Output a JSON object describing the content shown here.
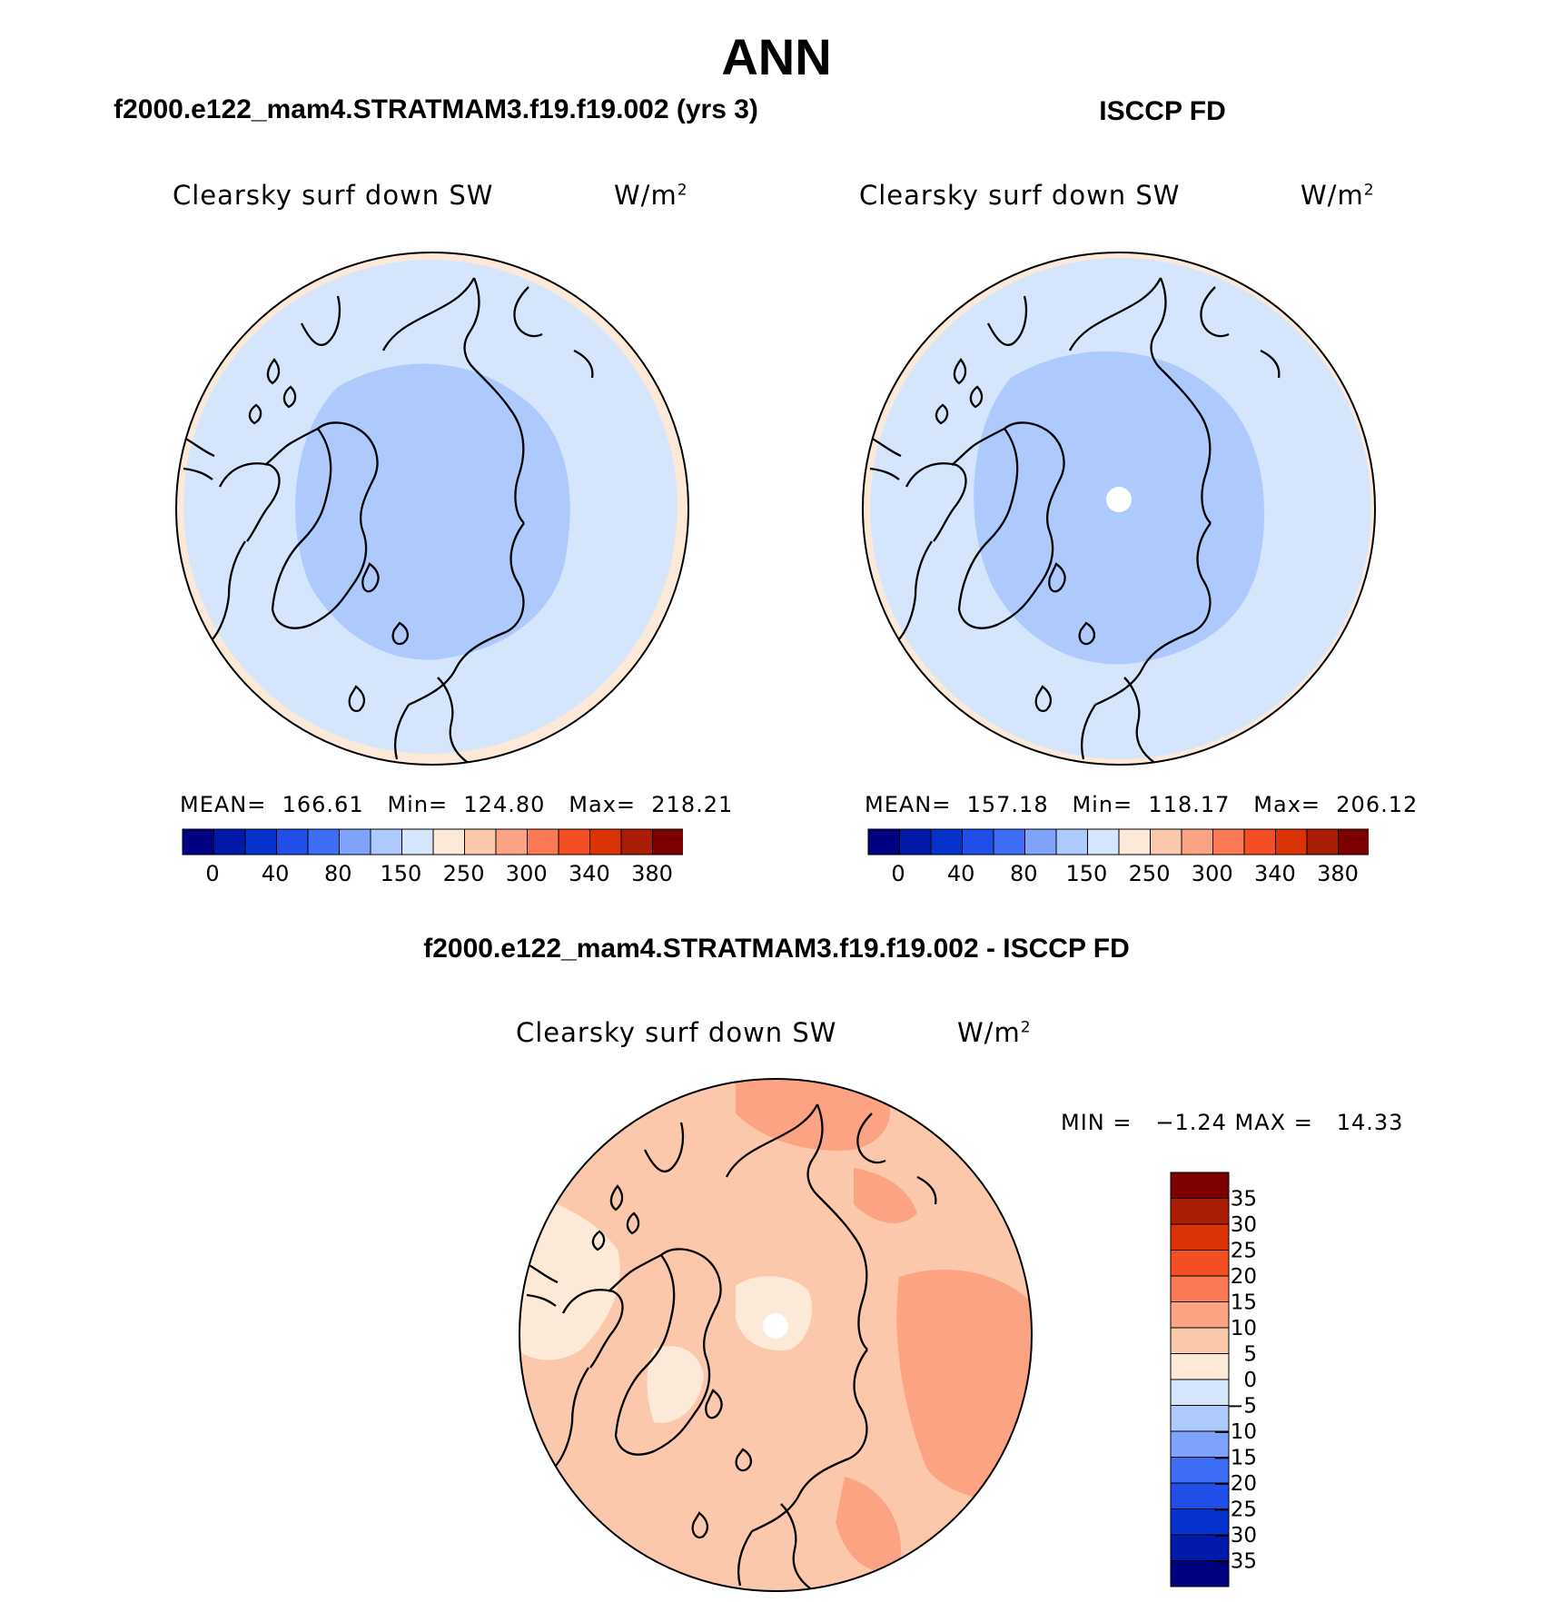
{
  "title": "ANN",
  "panels": {
    "left": {
      "title": "f2000.e122_mam4.STRATMAM3.f19.f19.002 (yrs 3)",
      "variable": "Clearsky surf down SW",
      "units": "W/m",
      "units_sup": "2",
      "stats": "MEAN=  166.61   Min=  124.80   Max=  218.21"
    },
    "right": {
      "title": "ISCCP FD",
      "variable": "Clearsky surf down SW",
      "units": "W/m",
      "units_sup": "2",
      "stats": "MEAN=  157.18   Min=  118.17   Max=  206.12"
    },
    "diff": {
      "title": "f2000.e122_mam4.STRATMAM3.f19.f19.002 - ISCCP FD",
      "variable": "Clearsky surf down SW",
      "units": "W/m",
      "units_sup": "2",
      "stats": "MIN =   −1.24 MAX =   14.33"
    }
  },
  "colorbar_main": {
    "colors": [
      "#000080",
      "#0019a8",
      "#0533cc",
      "#1f4ee8",
      "#3d6cf5",
      "#7fa3fb",
      "#aec9fc",
      "#d5e6fc",
      "#fde9d8",
      "#fcc8ac",
      "#fba383",
      "#fb7a55",
      "#f34e24",
      "#d93306",
      "#a91e04",
      "#7d0000"
    ],
    "tick_labels": [
      "0",
      "40",
      "80",
      "150",
      "250",
      "300",
      "340",
      "380"
    ]
  },
  "colorbar_diff": {
    "colors": [
      "#7d0000",
      "#a91e04",
      "#d93306",
      "#f34e24",
      "#fb7a55",
      "#fba383",
      "#fcc8ac",
      "#fde9d8",
      "#d5e6fc",
      "#aec9fc",
      "#7fa3fb",
      "#3d6cf5",
      "#1f4ee8",
      "#0533cc",
      "#0019a8",
      "#000080"
    ],
    "tick_labels": [
      "35",
      "30",
      "25",
      "20",
      "15",
      "10",
      "5",
      "0",
      "−5",
      "−10",
      "−15",
      "−20",
      "−25",
      "−30",
      "−35"
    ]
  }
}
